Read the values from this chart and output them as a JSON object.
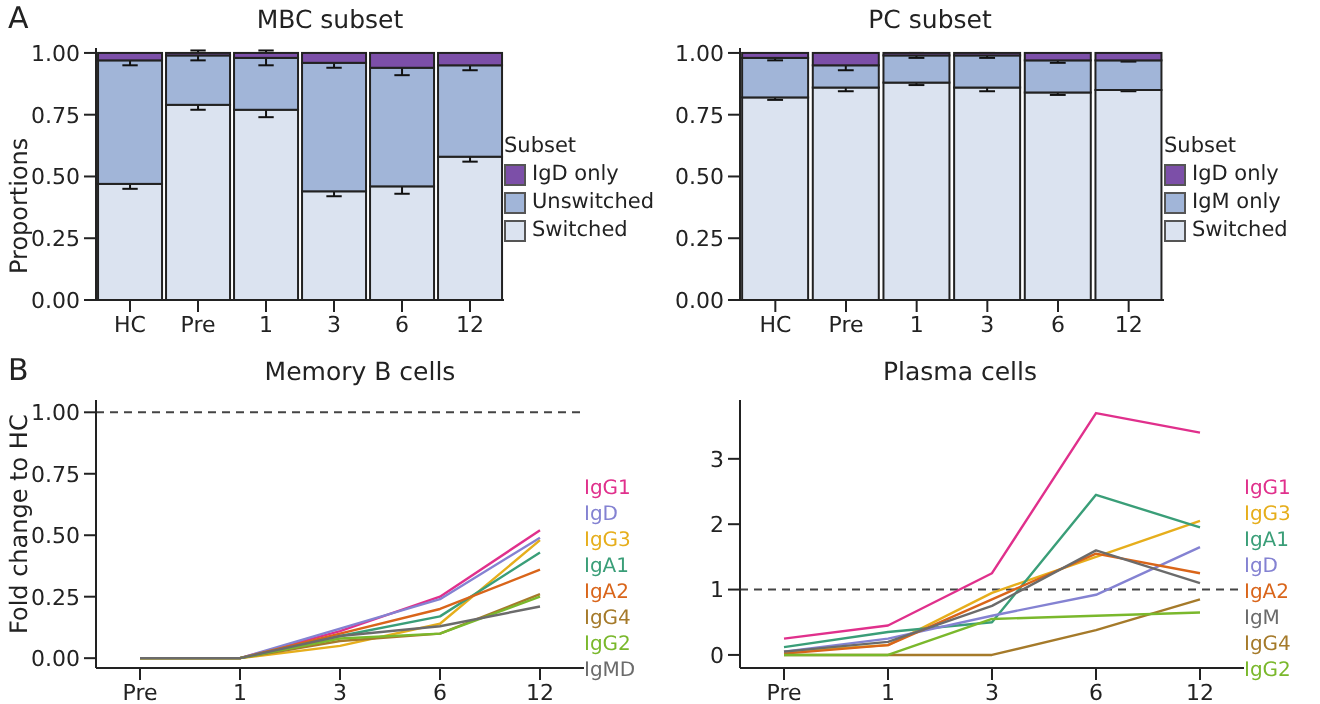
{
  "chart_data": [
    {
      "type": "bar",
      "title": "MBC subset",
      "ylabel": "Proportions",
      "annotations": [
        "A"
      ],
      "categories": [
        "HC",
        "Pre",
        "1",
        "3",
        "6",
        "12"
      ],
      "stacked": true,
      "legend": "right",
      "legend_title": "Subset",
      "series": [
        {
          "name": "Switched",
          "color": "#dbe3f0",
          "values": [
            0.47,
            0.79,
            0.77,
            0.44,
            0.46,
            0.58
          ],
          "errors": [
            0.02,
            0.02,
            0.03,
            0.02,
            0.03,
            0.02
          ]
        },
        {
          "name": "Unswitched",
          "color": "#a1b5d8",
          "values": [
            0.5,
            0.2,
            0.21,
            0.52,
            0.48,
            0.37
          ],
          "errors": [
            0.02,
            0.02,
            0.03,
            0.02,
            0.03,
            0.02
          ]
        },
        {
          "name": "IgD only",
          "color": "#7c4fa8",
          "values": [
            0.03,
            0.01,
            0.02,
            0.04,
            0.06,
            0.05
          ]
        }
      ],
      "ylim": [
        0,
        1.02
      ],
      "yticks": [
        {
          "value": 0,
          "label": "0.00"
        },
        {
          "value": 0.25,
          "label": "0.25"
        },
        {
          "value": 0.5,
          "label": "0.50"
        },
        {
          "value": 0.75,
          "label": "0.75"
        },
        {
          "value": 1,
          "label": "1.00"
        }
      ]
    },
    {
      "type": "bar",
      "title": "PC subset",
      "categories": [
        "HC",
        "Pre",
        "1",
        "3",
        "6",
        "12"
      ],
      "stacked": true,
      "legend": "right",
      "legend_title": "Subset",
      "series": [
        {
          "name": "Switched",
          "color": "#dbe3f0",
          "values": [
            0.82,
            0.86,
            0.88,
            0.86,
            0.84,
            0.85
          ],
          "errors": [
            0.01,
            0.015,
            0.01,
            0.015,
            0.01,
            0.005
          ]
        },
        {
          "name": "IgM only",
          "color": "#a1b5d8",
          "values": [
            0.16,
            0.09,
            0.11,
            0.13,
            0.13,
            0.12
          ],
          "errors": [
            0.01,
            0.02,
            0.01,
            0.01,
            0.01,
            0.005
          ]
        },
        {
          "name": "IgD only",
          "color": "#7c4fa8",
          "values": [
            0.02,
            0.05,
            0.01,
            0.01,
            0.03,
            0.03
          ]
        }
      ],
      "ylim": [
        0,
        1.02
      ],
      "yticks": [
        {
          "value": 0,
          "label": "0.00"
        },
        {
          "value": 0.25,
          "label": "0.25"
        },
        {
          "value": 0.5,
          "label": "0.50"
        },
        {
          "value": 0.75,
          "label": "0.75"
        },
        {
          "value": 1,
          "label": "1.00"
        }
      ]
    },
    {
      "type": "line",
      "title": "Memory B cells",
      "ylabel": "Fold change to HC",
      "annotations": [
        "B"
      ],
      "categories": [
        "Pre",
        "1",
        "3",
        "6",
        "12"
      ],
      "legend": "right",
      "series": [
        {
          "name": "IgG1",
          "color": "#e0308c",
          "values": [
            0,
            0,
            0.11,
            0.25,
            0.52
          ]
        },
        {
          "name": "IgD",
          "color": "#8482d2",
          "values": [
            0,
            0,
            0.12,
            0.24,
            0.49
          ]
        },
        {
          "name": "IgG3",
          "color": "#e6ae1c",
          "values": [
            0,
            0,
            0.05,
            0.14,
            0.48
          ]
        },
        {
          "name": "IgA1",
          "color": "#3a9e78",
          "values": [
            0,
            0,
            0.09,
            0.17,
            0.43
          ]
        },
        {
          "name": "IgA2",
          "color": "#d9651a",
          "values": [
            0,
            0,
            0.1,
            0.2,
            0.36
          ]
        },
        {
          "name": "IgG4",
          "color": "#a57a2a",
          "values": [
            0,
            0,
            0.07,
            0.1,
            0.26
          ]
        },
        {
          "name": "IgG2",
          "color": "#7ab82c",
          "values": [
            0,
            0,
            0.08,
            0.1,
            0.25
          ]
        },
        {
          "name": "IgMD",
          "color": "#6b6b6b",
          "values": [
            0,
            0,
            0.09,
            0.13,
            0.21
          ]
        }
      ],
      "ylim": [
        -0.04,
        1.05
      ],
      "yticks": [
        {
          "value": 0,
          "label": "0.00"
        },
        {
          "value": 0.25,
          "label": "0.25"
        },
        {
          "value": 0.5,
          "label": "0.50"
        },
        {
          "value": 0.75,
          "label": "0.75"
        },
        {
          "value": 1,
          "label": "1.00"
        }
      ],
      "ref_lines": [
        {
          "axis": "y",
          "value": 1,
          "line_style": "dashed",
          "color": "#444444"
        }
      ]
    },
    {
      "type": "line",
      "title": "Plasma cells",
      "categories": [
        "Pre",
        "1",
        "3",
        "6",
        "12"
      ],
      "legend": "right",
      "series": [
        {
          "name": "IgG1",
          "color": "#e0308c",
          "values": [
            0.25,
            0.45,
            1.25,
            3.7,
            3.4
          ]
        },
        {
          "name": "IgG3",
          "color": "#e6ae1c",
          "values": [
            0.05,
            0.15,
            0.95,
            1.5,
            2.05
          ]
        },
        {
          "name": "IgA1",
          "color": "#3a9e78",
          "values": [
            0.12,
            0.35,
            0.5,
            2.45,
            1.95
          ]
        },
        {
          "name": "IgD",
          "color": "#8482d2",
          "values": [
            0.05,
            0.25,
            0.6,
            0.92,
            1.65
          ]
        },
        {
          "name": "IgA2",
          "color": "#d9651a",
          "values": [
            0.02,
            0.15,
            0.85,
            1.55,
            1.25
          ]
        },
        {
          "name": "IgM",
          "color": "#6b6b6b",
          "values": [
            0.05,
            0.2,
            0.75,
            1.6,
            1.1
          ]
        },
        {
          "name": "IgG4",
          "color": "#a57a2a",
          "values": [
            0,
            0,
            0,
            0.38,
            0.85
          ]
        },
        {
          "name": "IgG2",
          "color": "#7ab82c",
          "values": [
            0,
            0,
            0.55,
            0.6,
            0.65
          ]
        }
      ],
      "ylim": [
        -0.2,
        3.9
      ],
      "yticks": [
        0,
        1,
        2,
        3
      ],
      "ref_lines": [
        {
          "axis": "y",
          "value": 1,
          "line_style": "dashed",
          "color": "#444444"
        }
      ]
    }
  ]
}
